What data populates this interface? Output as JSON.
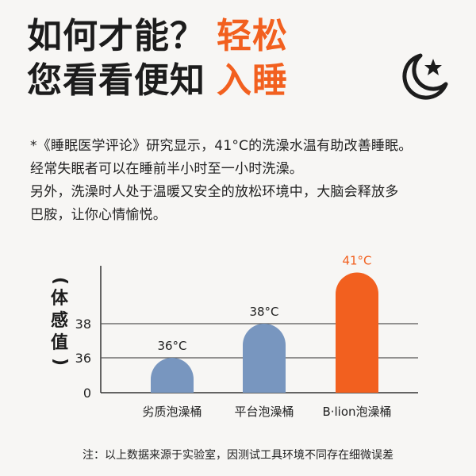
{
  "headline": {
    "line1": "如何才能？",
    "line1_accent": "轻松",
    "line2": "您看看便知",
    "line2_accent": "入睡"
  },
  "paragraph": [
    "*《睡眠医学评论》研究显示，41°C的洗澡水温有助改善睡眠。",
    "经常失眠者可以在睡前半小时至一小时洗澡。",
    "另外，洗澡时人处于温暖又安全的放松环境中，大脑会释放多",
    "巴胺，让你心情愉悦。"
  ],
  "icons": {
    "moon": "moon-star-icon"
  },
  "colors": {
    "accent": "#f2601f",
    "bar_blue": "#7896bf",
    "bar_orange": "#f2601f"
  },
  "chart_data": {
    "type": "bar",
    "ylabel_open": "(",
    "ylabel_text": [
      "体",
      "感",
      "值"
    ],
    "ylabel_close": ")",
    "categories": [
      "劣质泡澡桶",
      "平台泡澡桶",
      "B·lion泡澡桶"
    ],
    "values": [
      36,
      38,
      41
    ],
    "value_labels": [
      "36°C",
      "38°C",
      "41°C"
    ],
    "yticks": [
      0,
      36,
      38
    ],
    "ytick_labels": [
      "0",
      "36",
      "38"
    ],
    "grid": true,
    "highlight_index": 2
  },
  "footnote": "注：以上数据来源于实验室，因测试工具环境不同存在细微误差"
}
